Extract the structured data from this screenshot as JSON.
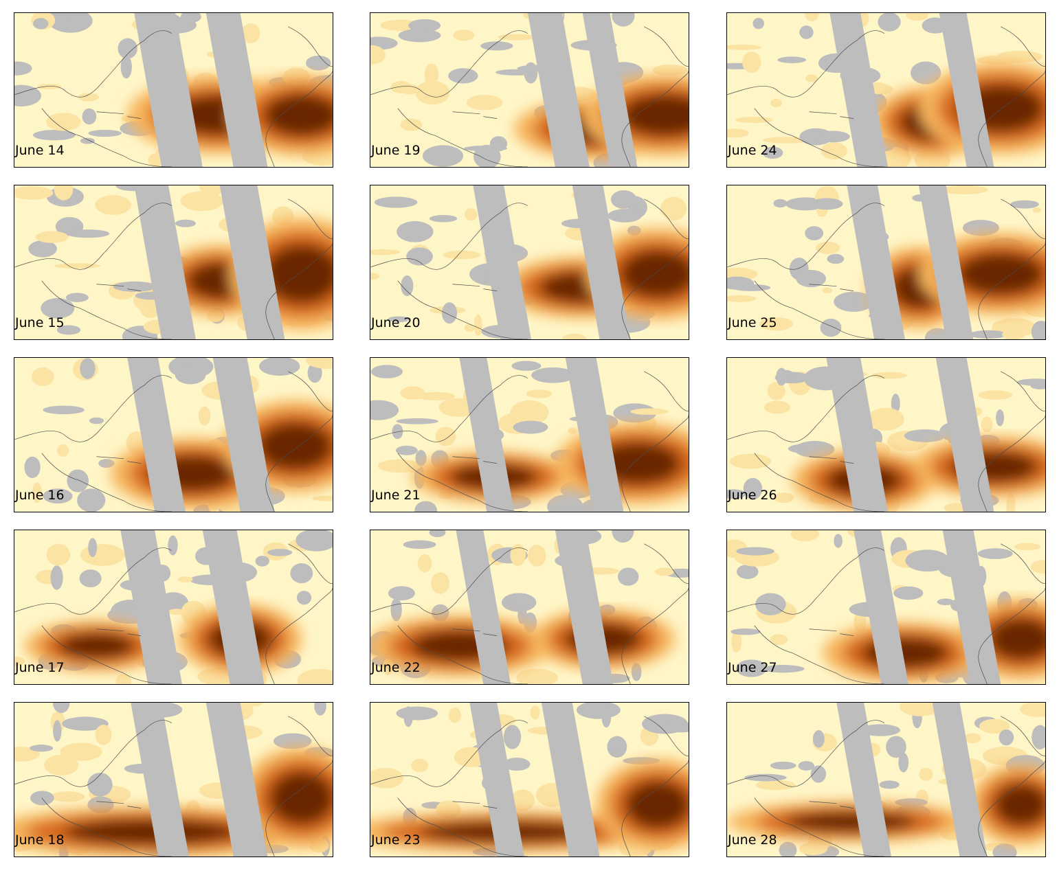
{
  "panels": [
    {
      "date": "June 14"
    },
    {
      "date": "June 19"
    },
    {
      "date": "June 24"
    },
    {
      "date": "June 15"
    },
    {
      "date": "June 20"
    },
    {
      "date": "June 25"
    },
    {
      "date": "June 16"
    },
    {
      "date": "June 21"
    },
    {
      "date": "June 26"
    },
    {
      "date": "June 17"
    },
    {
      "date": "June 22"
    },
    {
      "date": "June 27"
    },
    {
      "date": "June 18"
    },
    {
      "date": "June 23"
    },
    {
      "date": "June 28"
    }
  ],
  "colors": {
    "missing_data": "#bdbdbd",
    "low": "#fff6c8",
    "mid_low": "#fbe3a4",
    "mid": "#f6b45c",
    "high": "#d7691a",
    "very_high": "#6b2605",
    "coastline": "#4a4a4a",
    "frame": "#000000"
  }
}
